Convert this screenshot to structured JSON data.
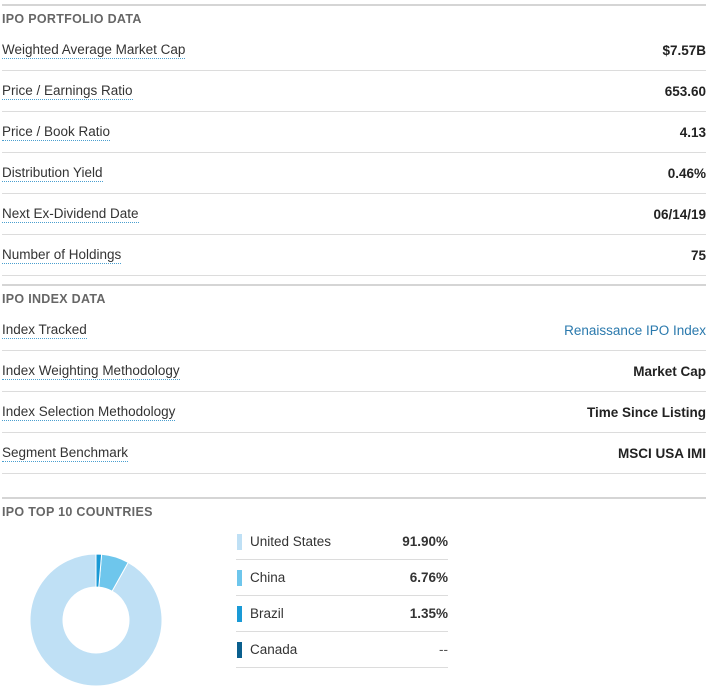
{
  "portfolio": {
    "title": "IPO PORTFOLIO DATA",
    "rows": [
      {
        "label": "Weighted Average Market Cap",
        "value": "$7.57B"
      },
      {
        "label": "Price / Earnings Ratio",
        "value": "653.60"
      },
      {
        "label": "Price / Book Ratio",
        "value": "4.13"
      },
      {
        "label": "Distribution Yield",
        "value": "0.46%"
      },
      {
        "label": "Next Ex-Dividend Date",
        "value": "06/14/19"
      },
      {
        "label": "Number of Holdings",
        "value": "75"
      }
    ]
  },
  "index": {
    "title": "IPO INDEX DATA",
    "rows": [
      {
        "label": "Index Tracked",
        "value": "Renaissance IPO Index"
      },
      {
        "label": "Index Weighting Methodology",
        "value": "Market Cap"
      },
      {
        "label": "Index Selection Methodology",
        "value": "Time Since Listing"
      },
      {
        "label": "Segment Benchmark",
        "value": "MSCI USA IMI"
      }
    ]
  },
  "countries": {
    "title": "IPO TOP 10 COUNTRIES",
    "items": [
      {
        "name": "United States",
        "pct": "91.90%",
        "color": "#bfe0f5"
      },
      {
        "name": "China",
        "pct": "6.76%",
        "color": "#6ec6ec"
      },
      {
        "name": "Brazil",
        "pct": "1.35%",
        "color": "#1a9ad6"
      },
      {
        "name": "Canada",
        "pct": "--",
        "color": "#0a5f8e"
      }
    ]
  },
  "chart_data": {
    "type": "pie",
    "categories": [
      "United States",
      "China",
      "Brazil",
      "Canada"
    ],
    "values": [
      91.9,
      6.76,
      1.35,
      0
    ],
    "colors": [
      "#bfe0f5",
      "#6ec6ec",
      "#1a9ad6",
      "#0a5f8e"
    ],
    "title": "IPO TOP 10 COUNTRIES",
    "donut": true
  }
}
